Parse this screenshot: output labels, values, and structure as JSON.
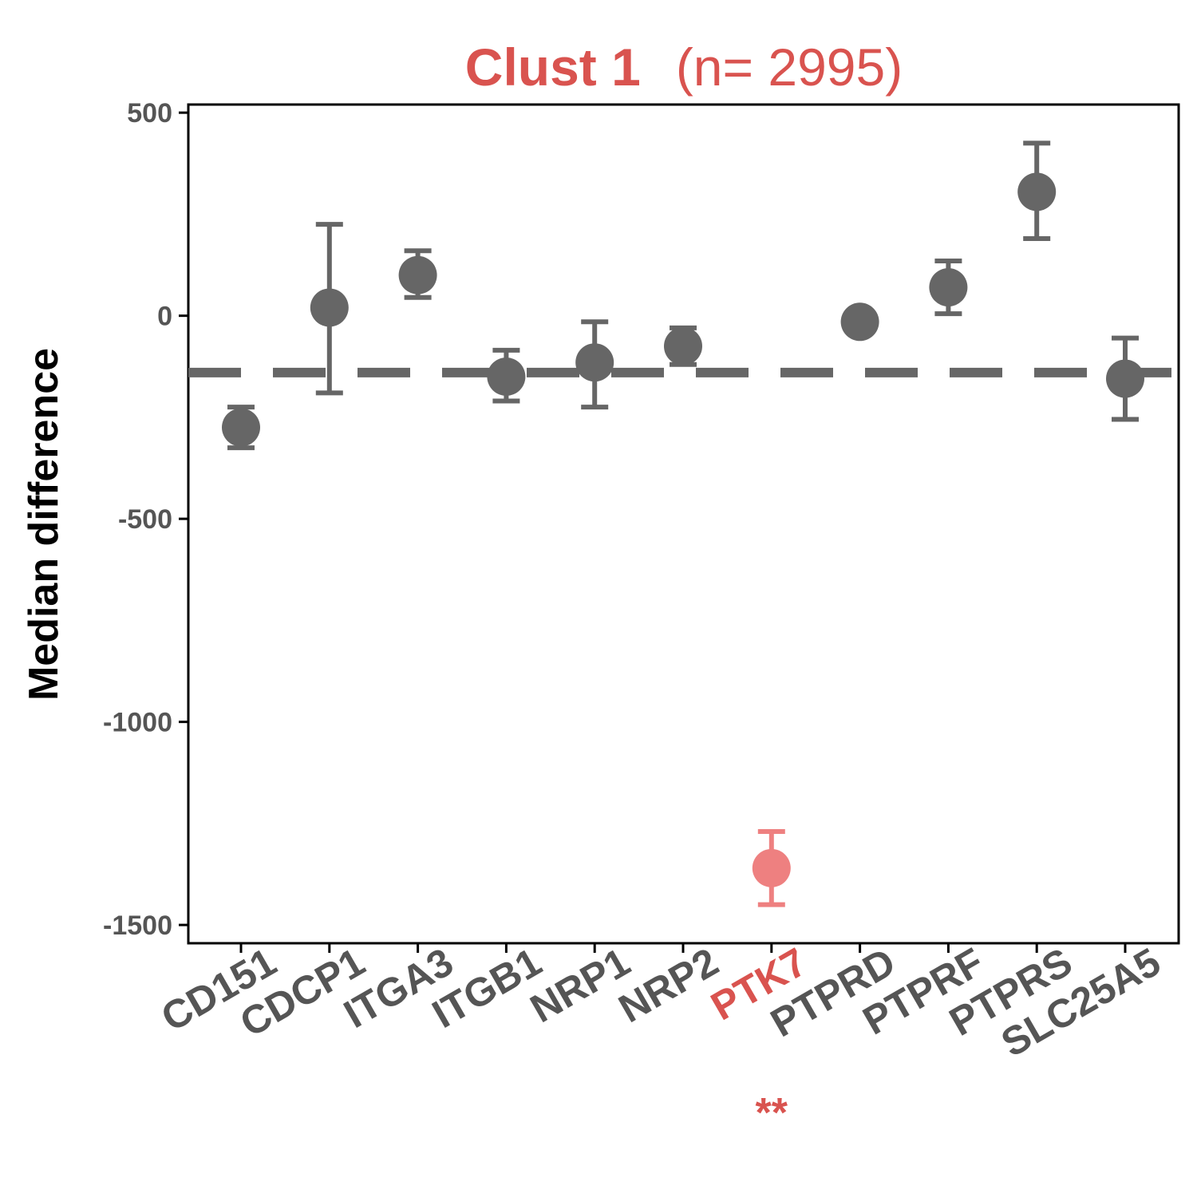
{
  "chart_data": {
    "type": "scatter",
    "title": {
      "main": "Clust 1",
      "sub": "(n= 2995)"
    },
    "xlabel": "",
    "ylabel": "Median difference",
    "ylim": [
      -1545,
      520
    ],
    "yticks": [
      500,
      0,
      -500,
      -1000,
      -1500
    ],
    "ytick_labels": [
      "500",
      "0",
      "-500",
      "-1000",
      "-1500"
    ],
    "reference_line": -140,
    "categories": [
      "CD151",
      "CDCP1",
      "ITGA3",
      "ITGB1",
      "NRP1",
      "NRP2",
      "PTK7",
      "PTPRD",
      "PTPRF",
      "PTPRS",
      "SLC25A5"
    ],
    "points": [
      {
        "gene": "CD151",
        "y": -275,
        "low": -325,
        "high": -225,
        "highlight": false
      },
      {
        "gene": "CDCP1",
        "y": 20,
        "low": -190,
        "high": 225,
        "highlight": false
      },
      {
        "gene": "ITGA3",
        "y": 100,
        "low": 45,
        "high": 160,
        "highlight": false
      },
      {
        "gene": "ITGB1",
        "y": -150,
        "low": -210,
        "high": -85,
        "highlight": false
      },
      {
        "gene": "NRP1",
        "y": -115,
        "low": -225,
        "high": -15,
        "highlight": false
      },
      {
        "gene": "NRP2",
        "y": -75,
        "low": -120,
        "high": -30,
        "highlight": false
      },
      {
        "gene": "PTK7",
        "y": -1360,
        "low": -1450,
        "high": -1270,
        "highlight": true
      },
      {
        "gene": "PTPRD",
        "y": -15,
        "low": null,
        "high": null,
        "highlight": false
      },
      {
        "gene": "PTPRF",
        "y": 70,
        "low": 5,
        "high": 135,
        "highlight": false
      },
      {
        "gene": "PTPRS",
        "y": 305,
        "low": 190,
        "high": 425,
        "highlight": false
      },
      {
        "gene": "SLC25A5",
        "y": -155,
        "low": -255,
        "high": -55,
        "highlight": false
      }
    ],
    "significance": [
      {
        "gene": "PTK7",
        "label": "**"
      }
    ],
    "grid": false,
    "legend": "none",
    "colors": {
      "point": "#666666",
      "highlight_point": "#ee8080",
      "highlight_text": "#d9534f",
      "title": "#d9534f",
      "axis": "#000000",
      "tick_text": "#555555"
    }
  }
}
